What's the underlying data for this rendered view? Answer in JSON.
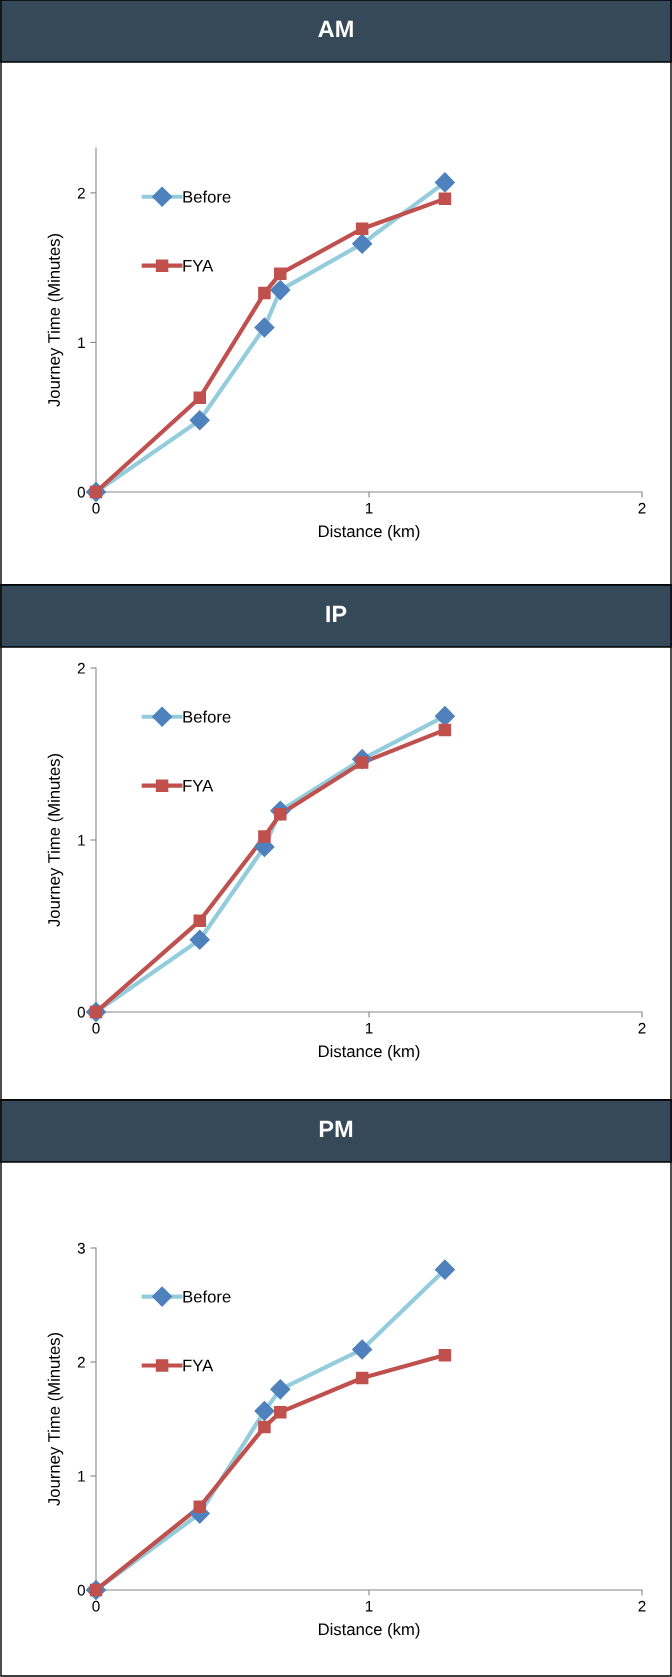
{
  "chart_data": [
    {
      "type": "line",
      "title": "AM",
      "xlabel": "Distance (km)",
      "ylabel": "Journey Time (Minutes)",
      "xlim": [
        0,
        2
      ],
      "xticks": [
        0,
        1,
        2
      ],
      "ylim": [
        0,
        2.3
      ],
      "yticks": [
        0,
        1,
        2
      ],
      "grid": false,
      "legend": "top left",
      "series": [
        {
          "name": "Before",
          "color": "#93cddd",
          "colors": [
            "#4f81bd",
            "#4f81bd",
            "#4f81bd",
            "#4f81bd",
            "#4f81bd",
            "#4f81bd"
          ],
          "marker": "diamond",
          "x": [
            0,
            0.38,
            0.617,
            0.675,
            0.975,
            1.278
          ],
          "values": [
            0,
            0.48,
            1.1,
            1.35,
            1.66,
            2.07
          ]
        },
        {
          "name": "FYA",
          "color": "#c0504d",
          "colors": [
            "#c0504d",
            "#c0504d",
            "#c0504d",
            "#c0504d",
            "#c0504d",
            "#c0504d"
          ],
          "marker": "square",
          "x": [
            0,
            0.38,
            0.617,
            0.675,
            0.975,
            1.278
          ],
          "values": [
            0,
            0.63,
            1.33,
            1.46,
            1.76,
            1.96
          ]
        }
      ]
    },
    {
      "type": "line",
      "title": "IP",
      "xlabel": "Distance (km)",
      "ylabel": "Journey Time (Minutes)",
      "xlim": [
        0,
        2
      ],
      "xticks": [
        0,
        1,
        2
      ],
      "ylim": [
        0,
        2
      ],
      "yticks": [
        0,
        1,
        2
      ],
      "grid": false,
      "legend": "top left",
      "series": [
        {
          "name": "Before",
          "color": "#93cddd",
          "colors": [
            "#4f81bd",
            "#4f81bd",
            "#4f81bd",
            "#4f81bd",
            "#4f81bd",
            "#4f81bd"
          ],
          "marker": "diamond",
          "x": [
            0,
            0.38,
            0.617,
            0.675,
            0.975,
            1.278
          ],
          "values": [
            0,
            0.42,
            0.96,
            1.17,
            1.47,
            1.72
          ]
        },
        {
          "name": "FYA",
          "color": "#c0504d",
          "colors": [
            "#c0504d",
            "#c0504d",
            "#c0504d",
            "#c0504d",
            "#c0504d",
            "#c0504d"
          ],
          "marker": "square",
          "x": [
            0,
            0.38,
            0.617,
            0.675,
            0.975,
            1.278
          ],
          "values": [
            0,
            0.53,
            1.02,
            1.15,
            1.45,
            1.64
          ]
        }
      ]
    },
    {
      "type": "line",
      "title": "PM",
      "xlabel": "Distance (km)",
      "ylabel": "Journey Time (Minutes)",
      "xlim": [
        0,
        2
      ],
      "xticks": [
        0,
        1,
        2
      ],
      "ylim": [
        0,
        3
      ],
      "yticks": [
        0,
        1,
        2,
        3
      ],
      "grid": false,
      "legend": "top left",
      "series": [
        {
          "name": "Before",
          "color": "#93cddd",
          "colors": [
            "#4f81bd",
            "#4f81bd",
            "#4f81bd",
            "#4f81bd",
            "#4f81bd",
            "#4f81bd"
          ],
          "marker": "diamond",
          "x": [
            0,
            0.38,
            0.617,
            0.675,
            0.975,
            1.278
          ],
          "values": [
            0,
            0.67,
            1.57,
            1.76,
            2.11,
            2.81
          ]
        },
        {
          "name": "FYA",
          "color": "#c0504d",
          "colors": [
            "#c0504d",
            "#c0504d",
            "#c0504d",
            "#c0504d",
            "#c0504d",
            "#c0504d"
          ],
          "marker": "square",
          "x": [
            0,
            0.38,
            0.617,
            0.675,
            0.975,
            1.278
          ],
          "values": [
            0,
            0.73,
            1.43,
            1.56,
            1.86,
            2.06
          ]
        }
      ]
    }
  ]
}
